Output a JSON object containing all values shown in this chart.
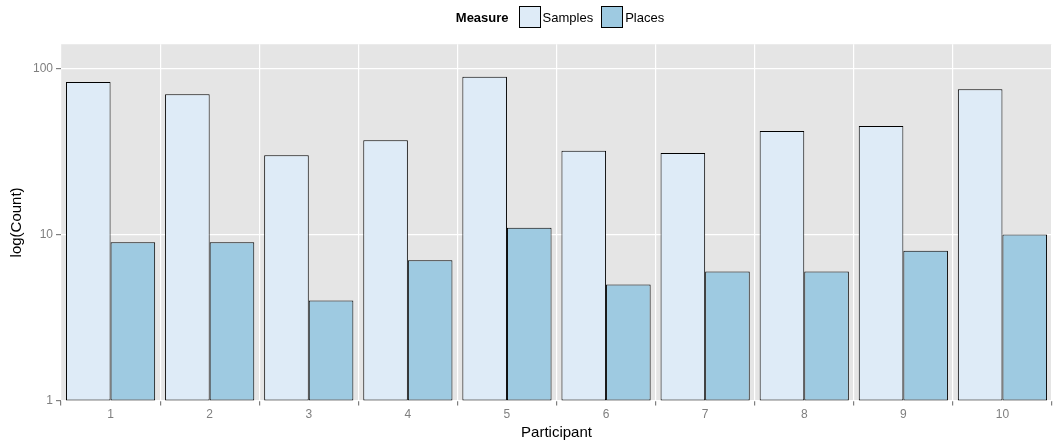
{
  "chart_data": {
    "type": "bar",
    "xlabel": "Participant",
    "ylabel": "log(Count)",
    "legend_title": "Measure",
    "legend": "top",
    "categories": [
      "1",
      "2",
      "3",
      "4",
      "5",
      "6",
      "7",
      "8",
      "9",
      "10"
    ],
    "series": [
      {
        "name": "Samples",
        "color": "#deebf7",
        "values": [
          83,
          70,
          30,
          37,
          89,
          32,
          31,
          42,
          45,
          75
        ]
      },
      {
        "name": "Places",
        "color": "#9ecae1",
        "values": [
          9,
          9,
          4,
          7,
          11,
          5,
          6,
          6,
          8,
          10
        ]
      }
    ],
    "log": "y",
    "ylim": [
      1,
      140
    ],
    "yticks": [
      1,
      10,
      100
    ],
    "grid": true
  }
}
